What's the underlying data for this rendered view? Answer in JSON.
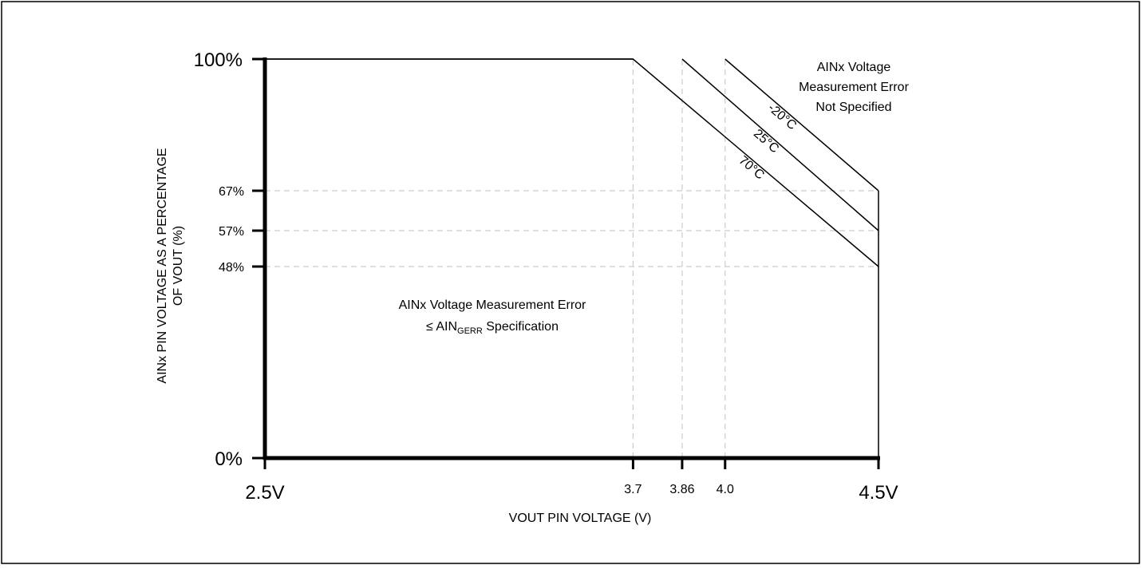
{
  "chart_data": {
    "type": "line",
    "title": "",
    "xlabel": "VOUT PIN VOLTAGE (V)",
    "ylabel": {
      "line1": "AINx PIN VOLTAGE AS A PERCENTAGE",
      "line2": "OF VOUT (%)"
    },
    "xlim": [
      2.5,
      4.5
    ],
    "ylim": [
      0,
      100
    ],
    "x_ticks": [
      {
        "value": 2.5,
        "label": "2.5V",
        "size": "big"
      },
      {
        "value": 3.7,
        "label": "3.7",
        "size": "small"
      },
      {
        "value": 3.86,
        "label": "3.86",
        "size": "small"
      },
      {
        "value": 4.0,
        "label": "4.0",
        "size": "small"
      },
      {
        "value": 4.5,
        "label": "4.5V",
        "size": "big"
      }
    ],
    "y_ticks": [
      {
        "value": 0,
        "label": "0%",
        "size": "big"
      },
      {
        "value": 48,
        "label": "48%",
        "size": "small"
      },
      {
        "value": 57,
        "label": "57%",
        "size": "small"
      },
      {
        "value": 67,
        "label": "67%",
        "size": "small"
      },
      {
        "value": 100,
        "label": "100%",
        "size": "big"
      }
    ],
    "series": [
      {
        "name": "70°C",
        "x": [
          2.5,
          3.7,
          4.5
        ],
        "y": [
          100,
          100,
          48
        ]
      },
      {
        "name": "25°C",
        "x": [
          3.86,
          4.5
        ],
        "y": [
          100,
          57
        ]
      },
      {
        "name": "-20°C",
        "x": [
          4.0,
          4.5
        ],
        "y": [
          100,
          67
        ]
      }
    ],
    "boundary": {
      "x": [
        4.5,
        4.5
      ],
      "y": [
        0,
        67
      ]
    },
    "annotations": {
      "upper_right": [
        "AINx Voltage",
        "Measurement Error",
        "Not Specified"
      ],
      "lower_left": {
        "line1": "AINx Voltage Measurement Error",
        "line2_prefix": "≤ AIN",
        "line2_sub": "GERR",
        "line2_suffix": " Specification"
      }
    },
    "grid": "dashed reference lines at marked ticks",
    "colors": {
      "line": "#000000",
      "grid": "#cccccc",
      "background": "#ffffff"
    }
  }
}
